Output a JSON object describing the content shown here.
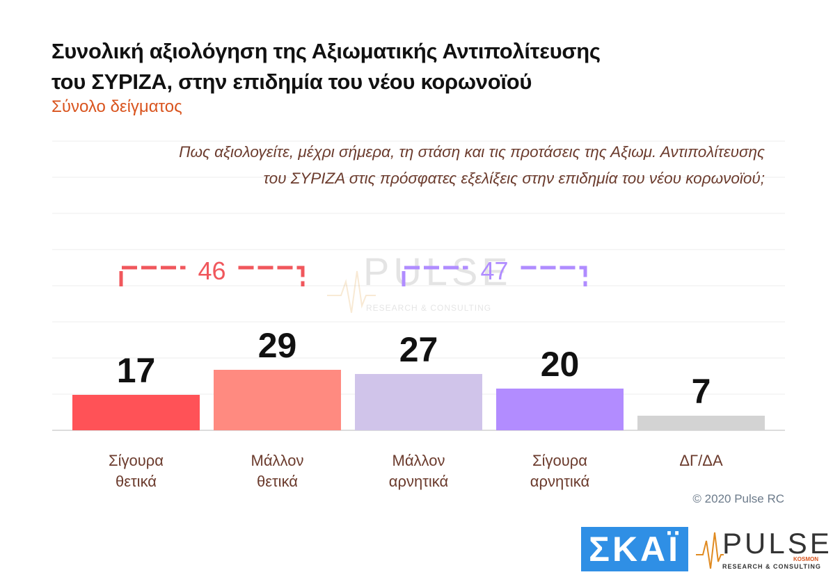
{
  "title_line1": "Συνολική αξιολόγηση της Αξιωματικής Αντιπολίτευσης",
  "title_line2": "του ΣΥΡΙΖΑ, στην επιδημία του νέου κορωνοϊού",
  "subtitle": "Σύνολο δείγματος",
  "question_line1": "Πως αξιολογείτε, μέχρι σήμερα, τη στάση και τις προτάσεις της Αξιωμ. Αντιπολίτευσης",
  "question_line2": "του ΣΥΡΙΖΑ στις πρόσφατες εξελίξεις στην επιδημία του νέου κορωνοϊού;",
  "copyright": "© 2020 Pulse RC",
  "logos": {
    "skai": "ΣΚΑΪ",
    "pulse": "PULSE",
    "pulse_kosmon": "KOSMON",
    "pulse_rc": "RESEARCH & CONSULTING"
  },
  "chart_data": {
    "type": "bar",
    "categories": [
      [
        "Σίγουρα",
        "θετικά"
      ],
      [
        "Μάλλον",
        "θετικά"
      ],
      [
        "Μάλλον",
        "αρνητικά"
      ],
      [
        "Σίγουρα",
        "αρνητικά"
      ],
      [
        "ΔΓ/ΔΑ"
      ]
    ],
    "values": [
      17,
      29,
      27,
      20,
      7
    ],
    "colors": [
      "#ff5257",
      "#ff8a80",
      "#d0c4ea",
      "#b28cff",
      "#d3d3d3"
    ],
    "ylim": [
      0,
      60
    ],
    "grid": true,
    "groups": [
      {
        "label": "46",
        "from": 0,
        "to": 1,
        "color": "#f0575c"
      },
      {
        "label": "47",
        "from": 2,
        "to": 3,
        "color": "#b08cff"
      }
    ]
  }
}
